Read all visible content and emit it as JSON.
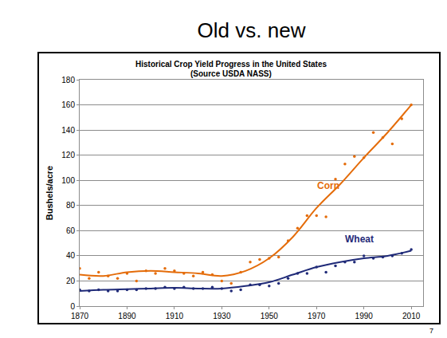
{
  "slide_title": "Old vs. new",
  "slide_number": "7",
  "chart_data": {
    "type": "scatter",
    "title": "Historical Crop Yield Progress in the United States",
    "subtitle": "(Source USDA NASS)",
    "y_label": "Bushels/acre",
    "x": [
      1870,
      1874,
      1878,
      1882,
      1886,
      1890,
      1894,
      1898,
      1902,
      1906,
      1910,
      1914,
      1918,
      1922,
      1926,
      1930,
      1934,
      1938,
      1942,
      1946,
      1950,
      1954,
      1958,
      1962,
      1966,
      1970,
      1974,
      1978,
      1982,
      1986,
      1990,
      1994,
      1998,
      2002,
      2006,
      2010
    ],
    "trend_x": [
      1870,
      1880,
      1890,
      1900,
      1910,
      1920,
      1930,
      1940,
      1950,
      1960,
      1970,
      1980,
      1990,
      2000,
      2010
    ],
    "series": [
      {
        "name": "Corn",
        "color": "#e46c0a",
        "marker": "dot",
        "line_style": "solid",
        "values": [
          30,
          22,
          27,
          24,
          22,
          26,
          20,
          28,
          26,
          30,
          28,
          26,
          24,
          27,
          25,
          20,
          18,
          27,
          35,
          37,
          38,
          39,
          52,
          62,
          72,
          72,
          71,
          101,
          113,
          119,
          118,
          138,
          134,
          129,
          149,
          160
        ],
        "trend": [
          25,
          24,
          27,
          28,
          27,
          26,
          24,
          28,
          38,
          55,
          78,
          97,
          118,
          138,
          160
        ],
        "label_x": 1975,
        "label_y": 96
      },
      {
        "name": "Wheat",
        "color": "#1f2a78",
        "marker": "dot",
        "line_style": "solid",
        "values": [
          13,
          12,
          13,
          12,
          12,
          13,
          13,
          14,
          14,
          15,
          14,
          15,
          14,
          14,
          15,
          14,
          12,
          13,
          17,
          17,
          16,
          18,
          22,
          26,
          26,
          31,
          27,
          32,
          35,
          35,
          40,
          38,
          39,
          40,
          42,
          45
        ],
        "trend": [
          12,
          13,
          13.5,
          14,
          14.5,
          14,
          14,
          16,
          19,
          25,
          31,
          35,
          38,
          40,
          44
        ],
        "label_x": 1988,
        "label_y": 53
      }
    ],
    "xlim": [
      1870,
      2015
    ],
    "xticks": [
      1870,
      1890,
      1910,
      1930,
      1950,
      1970,
      1990,
      2010
    ],
    "ylim": [
      0,
      180
    ],
    "yticks": [
      0,
      20,
      40,
      60,
      80,
      100,
      120,
      140,
      160,
      180
    ],
    "grid": "y"
  }
}
